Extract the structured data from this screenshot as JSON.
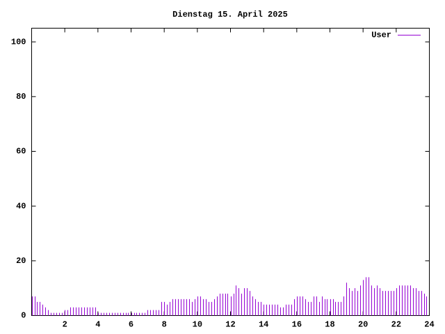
{
  "chart_data": {
    "type": "impulses",
    "title": "Dienstag 15. April 2025",
    "xlim": [
      0,
      24
    ],
    "xticks": [
      2,
      4,
      6,
      8,
      10,
      12,
      14,
      16,
      18,
      20,
      22,
      24
    ],
    "ylim": [
      0,
      105
    ],
    "yticks": [
      0,
      20,
      40,
      60,
      80,
      100
    ],
    "legend": "top-right",
    "series": [
      {
        "name": "User",
        "color": "#9400d3",
        "x": [
          0,
          0.17,
          0.33,
          0.5,
          0.67,
          0.83,
          1,
          1.17,
          1.33,
          1.5,
          1.67,
          1.83,
          2,
          2.17,
          2.33,
          2.5,
          2.67,
          2.83,
          3,
          3.17,
          3.33,
          3.5,
          3.67,
          3.83,
          4,
          4.17,
          4.33,
          4.5,
          4.67,
          4.83,
          5,
          5.17,
          5.33,
          5.5,
          5.67,
          5.83,
          6,
          6.17,
          6.33,
          6.5,
          6.67,
          6.83,
          7,
          7.17,
          7.33,
          7.5,
          7.67,
          7.83,
          8,
          8.17,
          8.33,
          8.5,
          8.67,
          8.83,
          9,
          9.17,
          9.33,
          9.5,
          9.67,
          9.83,
          10,
          10.17,
          10.33,
          10.5,
          10.67,
          10.83,
          11,
          11.17,
          11.33,
          11.5,
          11.67,
          11.83,
          12,
          12.17,
          12.33,
          12.5,
          12.67,
          12.83,
          13,
          13.17,
          13.33,
          13.5,
          13.67,
          13.83,
          14,
          14.17,
          14.33,
          14.5,
          14.67,
          14.83,
          15,
          15.17,
          15.33,
          15.5,
          15.67,
          15.83,
          16,
          16.17,
          16.33,
          16.5,
          16.67,
          16.83,
          17,
          17.17,
          17.33,
          17.5,
          17.67,
          17.83,
          18,
          18.17,
          18.33,
          18.5,
          18.67,
          18.83,
          19,
          19.17,
          19.33,
          19.5,
          19.67,
          19.83,
          20,
          20.17,
          20.33,
          20.5,
          20.67,
          20.83,
          21,
          21.17,
          21.33,
          21.5,
          21.67,
          21.83,
          22,
          22.17,
          22.33,
          22.5,
          22.67,
          22.83,
          23,
          23.17,
          23.33,
          23.5,
          23.67,
          23.83
        ],
        "values": [
          7,
          7,
          5,
          5,
          4,
          3,
          2,
          1,
          1,
          1,
          1,
          1,
          2,
          2,
          3,
          3,
          3,
          3,
          3,
          3,
          3,
          3,
          3,
          3,
          1,
          1,
          1,
          1,
          1,
          1,
          1,
          1,
          1,
          1,
          1,
          1,
          1,
          1,
          1,
          1,
          1,
          1,
          2,
          2,
          2,
          2,
          2,
          5,
          5,
          4,
          5,
          6,
          6,
          6,
          6,
          6,
          6,
          6,
          5,
          6,
          7,
          7,
          6,
          6,
          5,
          5,
          6,
          7,
          8,
          8,
          8,
          8,
          7,
          8,
          11,
          10,
          8,
          10,
          10,
          9,
          7,
          6,
          5,
          5,
          4,
          4,
          4,
          4,
          4,
          4,
          3,
          3,
          4,
          4,
          4,
          6,
          7,
          7,
          7,
          6,
          5,
          5,
          7,
          7,
          5,
          7,
          6,
          6,
          6,
          6,
          5,
          5,
          5,
          7,
          12,
          10,
          9,
          10,
          9,
          11,
          13,
          14,
          14,
          11,
          10,
          11,
          10,
          9,
          9,
          9,
          9,
          9,
          10,
          11,
          11,
          11,
          11,
          11,
          10,
          10,
          9,
          9,
          8,
          7
        ]
      }
    ]
  }
}
